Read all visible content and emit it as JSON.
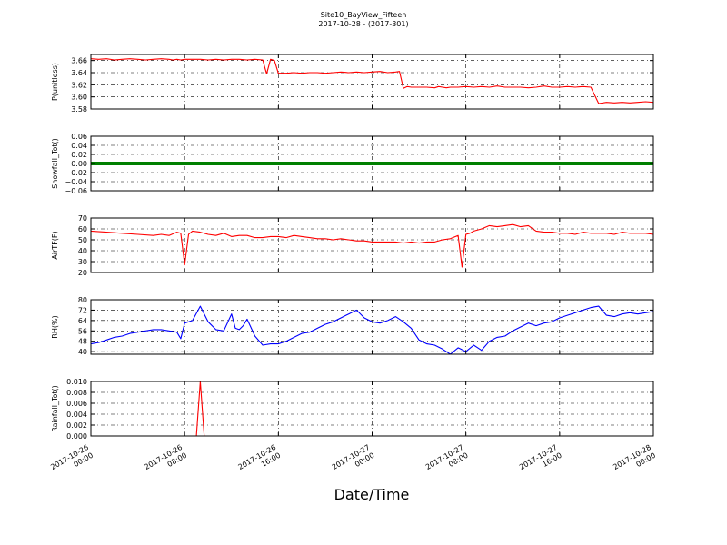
{
  "figure": {
    "title": "Site10_BayView_Fifteen",
    "subtitle": "2017-10-28 - (2017-301)",
    "xlabel": "Date/Time"
  },
  "chart_data": [
    {
      "type": "line",
      "ylabel": "P(unitless)",
      "ylim": [
        3.58,
        3.67
      ],
      "yticks": [
        "3.58",
        "3.60",
        "3.62",
        "3.64",
        "3.66"
      ],
      "ytick_values": [
        3.58,
        3.6,
        3.62,
        3.64,
        3.66
      ],
      "color": "#ff0000",
      "grid": true,
      "series": [
        {
          "x": [
            0,
            2,
            4,
            6,
            8,
            10,
            12,
            14,
            16,
            18,
            20,
            21,
            22,
            23,
            24,
            26,
            28,
            30,
            32,
            34,
            36,
            38,
            40,
            42,
            44,
            45,
            46,
            47,
            48,
            50,
            52,
            54,
            56,
            58,
            60,
            62,
            64,
            66,
            68,
            70,
            72,
            74,
            76,
            78,
            79,
            80,
            81,
            82,
            84,
            86,
            88,
            89,
            90,
            91,
            92,
            94,
            96,
            98,
            100,
            102,
            104,
            106,
            108,
            110,
            112,
            114,
            116,
            118,
            120,
            122,
            124,
            126,
            128,
            130,
            132,
            134,
            136,
            138,
            140,
            142,
            144
          ],
          "values": [
            3.663,
            3.662,
            3.663,
            3.661,
            3.662,
            3.663,
            3.662,
            3.661,
            3.662,
            3.663,
            3.662,
            3.661,
            3.662,
            3.661,
            3.662,
            3.662,
            3.662,
            3.661,
            3.662,
            3.661,
            3.662,
            3.662,
            3.661,
            3.662,
            3.661,
            3.638,
            3.662,
            3.66,
            3.639,
            3.639,
            3.64,
            3.639,
            3.64,
            3.64,
            3.639,
            3.64,
            3.641,
            3.64,
            3.641,
            3.64,
            3.641,
            3.642,
            3.64,
            3.641,
            3.642,
            3.614,
            3.617,
            3.616,
            3.616,
            3.616,
            3.615,
            3.617,
            3.616,
            3.615,
            3.616,
            3.616,
            3.617,
            3.616,
            3.617,
            3.616,
            3.618,
            3.616,
            3.616,
            3.616,
            3.615,
            3.616,
            3.618,
            3.616,
            3.616,
            3.617,
            3.616,
            3.617,
            3.616,
            3.589,
            3.591,
            3.59,
            3.591,
            3.59,
            3.591,
            3.592,
            3.591
          ]
        }
      ]
    },
    {
      "type": "line",
      "ylabel": "Snowfall_Tot()",
      "ylim": [
        -0.06,
        0.06
      ],
      "yticks": [
        "−0.06",
        "−0.04",
        "−0.02",
        "0.00",
        "0.02",
        "0.04",
        "0.06"
      ],
      "ytick_values": [
        -0.06,
        -0.04,
        -0.02,
        0.0,
        0.02,
        0.04,
        0.06
      ],
      "color": "#008000",
      "grid": true,
      "series": [
        {
          "x": [
            0,
            144
          ],
          "values": [
            0.0,
            0.0
          ]
        }
      ]
    },
    {
      "type": "line",
      "ylabel": "AirTF(F)",
      "ylim": [
        20,
        70
      ],
      "yticks": [
        "20",
        "30",
        "40",
        "50",
        "60",
        "70"
      ],
      "ytick_values": [
        20,
        30,
        40,
        50,
        60,
        70
      ],
      "color": "#ff0000",
      "grid": true,
      "series": [
        {
          "x": [
            0,
            4,
            8,
            12,
            16,
            18,
            20,
            22,
            23,
            24,
            25,
            26,
            28,
            30,
            32,
            34,
            36,
            38,
            40,
            42,
            44,
            46,
            48,
            50,
            52,
            54,
            56,
            58,
            60,
            62,
            64,
            66,
            68,
            70,
            72,
            74,
            76,
            78,
            80,
            82,
            84,
            86,
            88,
            90,
            92,
            94,
            95,
            96,
            97,
            98,
            100,
            102,
            104,
            106,
            108,
            110,
            112,
            114,
            116,
            118,
            120,
            122,
            124,
            126,
            128,
            130,
            132,
            134,
            136,
            138,
            140,
            142,
            144
          ],
          "values": [
            58,
            57,
            56,
            55,
            54,
            55,
            54,
            57,
            56,
            27,
            55,
            58,
            57,
            55,
            54,
            56,
            53,
            54,
            54,
            52,
            52,
            53,
            53,
            52,
            54,
            53,
            52,
            51,
            51,
            50,
            51,
            50,
            49,
            49,
            48,
            48,
            48,
            48,
            47,
            48,
            47,
            48,
            48,
            50,
            51,
            54,
            25,
            55,
            56,
            58,
            60,
            63,
            62,
            63,
            64,
            62,
            63,
            58,
            57,
            57,
            56,
            56,
            55,
            57,
            56,
            56,
            56,
            55,
            57,
            56,
            56,
            56,
            55
          ]
        }
      ]
    },
    {
      "type": "line",
      "ylabel": "RH(%)",
      "ylim": [
        38,
        80
      ],
      "yticks": [
        "40",
        "48",
        "56",
        "64",
        "72",
        "80"
      ],
      "ytick_values": [
        40,
        48,
        56,
        64,
        72,
        80
      ],
      "color": "#0000ff",
      "grid": true,
      "series": [
        {
          "x": [
            0,
            2,
            4,
            6,
            8,
            10,
            12,
            14,
            16,
            18,
            20,
            22,
            23,
            24,
            26,
            28,
            30,
            32,
            34,
            36,
            37,
            38,
            39,
            40,
            42,
            44,
            46,
            48,
            50,
            52,
            54,
            56,
            58,
            60,
            62,
            64,
            66,
            68,
            70,
            72,
            74,
            76,
            78,
            80,
            82,
            84,
            86,
            88,
            90,
            92,
            94,
            96,
            98,
            100,
            102,
            104,
            106,
            108,
            110,
            112,
            114,
            116,
            118,
            120,
            122,
            124,
            126,
            128,
            130,
            132,
            134,
            136,
            138,
            140,
            142,
            144
          ],
          "values": [
            46,
            47,
            49,
            51,
            52,
            54,
            55,
            56,
            57,
            57,
            56,
            55,
            50,
            62,
            64,
            75,
            63,
            57,
            56,
            69,
            58,
            57,
            60,
            65,
            52,
            45,
            46,
            46,
            48,
            51,
            54,
            55,
            58,
            61,
            63,
            66,
            69,
            72,
            66,
            63,
            62,
            64,
            67,
            63,
            58,
            49,
            46,
            45,
            42,
            38,
            43,
            40,
            45,
            41,
            48,
            51,
            52,
            56,
            59,
            62,
            60,
            62,
            63,
            66,
            68,
            70,
            72,
            74,
            75,
            68,
            67,
            69,
            70,
            69,
            70,
            71
          ]
        }
      ]
    },
    {
      "type": "line",
      "ylabel": "Rainfall_Tot()",
      "ylim": [
        0.0,
        0.01
      ],
      "yticks": [
        "0.000",
        "0.002",
        "0.004",
        "0.006",
        "0.008",
        "0.010"
      ],
      "ytick_values": [
        0.0,
        0.002,
        0.004,
        0.006,
        0.008,
        0.01
      ],
      "color": "#ff0000",
      "grid": true,
      "series": [
        {
          "x": [
            0,
            27,
            28,
            29,
            144
          ],
          "values": [
            0.0,
            0.0,
            0.01,
            0.0,
            0.0
          ]
        }
      ]
    }
  ],
  "x_axis": {
    "xlim": [
      0,
      144
    ],
    "tick_positions": [
      0,
      24,
      48,
      72,
      96,
      120,
      144
    ],
    "tick_labels": [
      [
        "2017-10-26",
        "00:00"
      ],
      [
        "2017-10-26",
        "08:00"
      ],
      [
        "2017-10-26",
        "16:00"
      ],
      [
        "2017-10-27",
        "00:00"
      ],
      [
        "2017-10-27",
        "08:00"
      ],
      [
        "2017-10-27",
        "16:00"
      ],
      [
        "2017-10-28",
        "00:00"
      ]
    ]
  }
}
